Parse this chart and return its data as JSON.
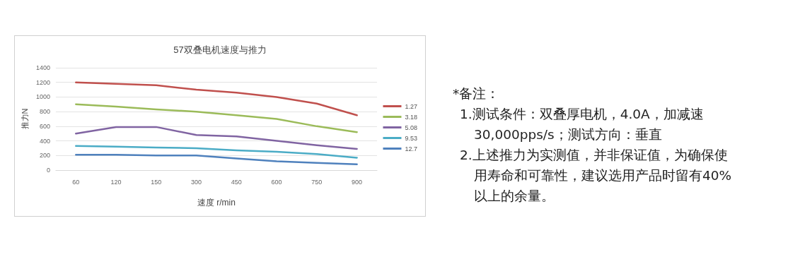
{
  "chart_data": {
    "type": "line",
    "title": "57双叠电机速度与推力",
    "xlabel": "速度 r/min",
    "ylabel": "推力N",
    "categories": [
      "60",
      "120",
      "150",
      "300",
      "450",
      "600",
      "750",
      "900"
    ],
    "series": [
      {
        "name": "1.27",
        "color": "#c0504d",
        "values": [
          1200,
          1180,
          1160,
          1100,
          1060,
          1000,
          910,
          750
        ]
      },
      {
        "name": "3.18",
        "color": "#9bbb59",
        "values": [
          900,
          870,
          830,
          800,
          750,
          700,
          600,
          520
        ]
      },
      {
        "name": "5.08",
        "color": "#8064a2",
        "values": [
          500,
          590,
          590,
          480,
          460,
          400,
          340,
          290
        ]
      },
      {
        "name": "9.53",
        "color": "#4bacc6",
        "values": [
          330,
          320,
          310,
          300,
          270,
          250,
          220,
          170
        ]
      },
      {
        "name": "12.7",
        "color": "#4f81bd",
        "values": [
          210,
          210,
          200,
          200,
          160,
          120,
          100,
          80
        ]
      }
    ],
    "ylim": [
      0,
      1400
    ],
    "yticks": [
      0,
      200,
      400,
      600,
      800,
      1000,
      1200,
      1400
    ],
    "grid": "y",
    "legend": "right",
    "marker": "none",
    "line_style": "solid",
    "annotations": [
      "*备注：",
      "1.测试条件：双叠厚电机，4.0A，加减速 30,000pps/s；测试方向：垂直",
      "2.上述推力为实测值，并非保证值，为确保使用寿命和可靠性，建议选用产品时留有40%以上的余量。"
    ]
  }
}
